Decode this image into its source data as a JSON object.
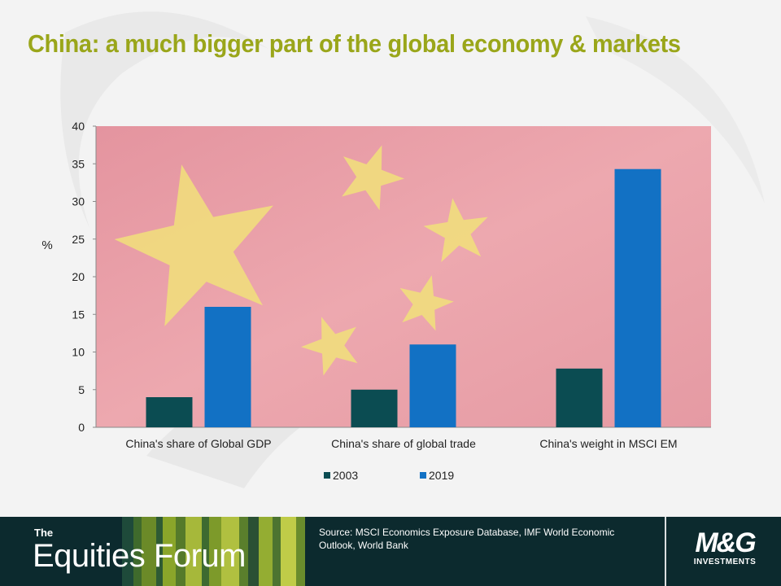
{
  "title": "China: a much bigger part of the global economy & markets",
  "colors": {
    "title": "#9aa61a",
    "series_2003": "#0b4c52",
    "series_2019": "#1271c4",
    "flag_red": "#e8a0a8",
    "star": "#f1e07a",
    "footer_bg": "#0c2a2e"
  },
  "chart_data": {
    "type": "bar",
    "categories": [
      "China's share of Global GDP",
      "China's share of global trade",
      "China's weight in MSCI EM"
    ],
    "series": [
      {
        "name": "2003",
        "values": [
          4,
          5,
          7.8
        ]
      },
      {
        "name": "2019",
        "values": [
          16,
          11,
          34.3
        ]
      }
    ],
    "ylabel": "%",
    "ylim": [
      0,
      40
    ],
    "yticks": [
      0,
      5,
      10,
      15,
      20,
      25,
      30,
      35,
      40
    ],
    "grid": false,
    "legend": "bottom",
    "background": "China flag image"
  },
  "footer": {
    "brand_the": "The",
    "brand_name": "Equities Forum",
    "source": "Source: MSCI Economics Exposure Database, IMF World Economic Outlook, World Bank",
    "logo_main": "M&G",
    "logo_sub": "INVESTMENTS"
  }
}
